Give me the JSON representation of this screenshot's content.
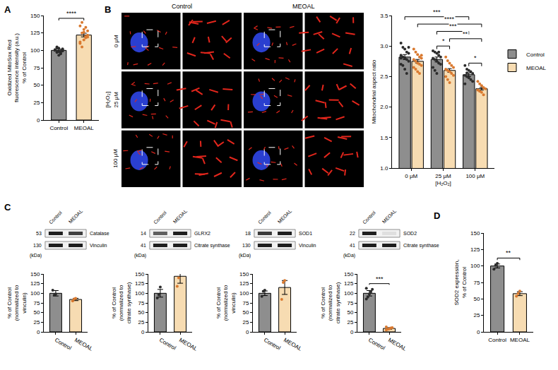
{
  "chart_data": [
    {
      "panel": "A",
      "type": "bar",
      "categories": [
        "Control",
        "MEOAL"
      ],
      "values": [
        100,
        122
      ],
      "errors": [
        1.5,
        2.6
      ],
      "points": [
        [
          100,
          97,
          103,
          95,
          99,
          101,
          104,
          98,
          96,
          102,
          100,
          105,
          93,
          99,
          101
        ],
        [
          110,
          125,
          130,
          118,
          122,
          135,
          140,
          115,
          120,
          128,
          112,
          105,
          126,
          133,
          119
        ]
      ],
      "colors": [
        "#8e8e8e",
        "#f7dcb2"
      ],
      "point_colors": [
        "#2b2b2b",
        "#d9792f"
      ],
      "ylabel": [
        "Oxidized MitoSox Red fluorescence intensity (a.u.)",
        "% of Control"
      ],
      "ylim": [
        0,
        150
      ],
      "yticks": [
        0,
        25,
        50,
        75,
        100,
        125,
        150
      ],
      "grid": false,
      "significance": [
        {
          "from": 0,
          "to": 1,
          "y": 146,
          "label": "****"
        }
      ]
    },
    {
      "panel": "B",
      "type": "bar",
      "categories": [
        "0 μM",
        "25 μM",
        "100 μM"
      ],
      "xlabel": "[H₂O₂]",
      "ylabel": [
        "Mitochondrial aspect ratio"
      ],
      "ylim": [
        1,
        3.5
      ],
      "yticks": [
        {
          "value": 1,
          "label": "1.0"
        },
        {
          "value": 1.5,
          "label": "1.5"
        },
        {
          "value": 2,
          "label": "2.0"
        },
        {
          "value": 2.5,
          "label": "2.5"
        },
        {
          "value": 3,
          "label": "3.0"
        },
        {
          "value": 3.5,
          "label": "3.5"
        }
      ],
      "grid": false,
      "legend": "right",
      "series": [
        {
          "name": "Control",
          "color": "#8e8e8e",
          "point_color": "#2b2b2b",
          "values": [
            2.82,
            2.78,
            2.53
          ],
          "errors": [
            0.04,
            0.04,
            0.03
          ],
          "points": [
            [
              3.05,
              2.98,
              2.95,
              2.9,
              2.88,
              2.85,
              2.82,
              2.8,
              2.78,
              2.75,
              2.7,
              2.68,
              2.62,
              2.55,
              2.98,
              2.8
            ],
            [
              2.92,
              2.9,
              2.88,
              2.85,
              2.82,
              2.8,
              2.78,
              2.75,
              2.72,
              2.7,
              2.65,
              2.6,
              2.55,
              2.9
            ],
            [
              2.68,
              2.62,
              2.6,
              2.58,
              2.55,
              2.52,
              2.5,
              2.48,
              2.45,
              2.42,
              2.38,
              2.56
            ]
          ]
        },
        {
          "name": "MEOAL",
          "color": "#f7dcb2",
          "point_color": "#d9792f",
          "values": [
            2.75,
            2.6,
            2.3
          ],
          "errors": [
            0.03,
            0.03,
            0.02
          ],
          "points": [
            [
              2.95,
              2.9,
              2.86,
              2.82,
              2.8,
              2.78,
              2.75,
              2.72,
              2.7,
              2.68,
              2.65,
              2.62,
              2.58,
              2.55,
              2.85
            ],
            [
              2.82,
              2.76,
              2.72,
              2.68,
              2.65,
              2.62,
              2.6,
              2.58,
              2.55,
              2.52,
              2.5,
              2.45,
              2.4
            ],
            [
              2.42,
              2.38,
              2.35,
              2.32,
              2.3,
              2.28,
              2.26,
              2.24,
              2.2
            ]
          ]
        }
      ],
      "significance": [
        {
          "from": [
            2,
            0
          ],
          "to": [
            2,
            1
          ],
          "y": 2.72,
          "label": "*"
        },
        {
          "from": [
            1,
            0
          ],
          "to": [
            1,
            1
          ],
          "y": 3.0,
          "label": "*"
        },
        {
          "from": [
            1,
            1
          ],
          "to": [
            2,
            1
          ],
          "y": 3.12,
          "label": "**"
        },
        {
          "from": [
            1,
            0
          ],
          "to": [
            2,
            0
          ],
          "y": 3.24,
          "label": "***"
        },
        {
          "from": [
            0,
            1
          ],
          "to": [
            2,
            1
          ],
          "y": 3.36,
          "label": "****"
        },
        {
          "from": [
            0,
            0
          ],
          "to": [
            2,
            0
          ],
          "y": 3.48,
          "label": "***"
        }
      ]
    },
    {
      "panel": "C",
      "type": "bar",
      "categories": [
        "Control",
        "MEOAL"
      ],
      "values": [
        100,
        84
      ],
      "errors": [
        7,
        3
      ],
      "points": [
        [
          108,
          95,
          98
        ],
        [
          80,
          85,
          87
        ]
      ],
      "colors": [
        "#8e8e8e",
        "#f7dcb2"
      ],
      "point_colors": [
        "#2b2b2b",
        "#d9792f"
      ],
      "ylabel": [
        "% of Control",
        "(normalized to vinculin)"
      ],
      "ylim": [
        0,
        150
      ],
      "yticks": [
        0,
        25,
        50,
        75,
        100,
        125,
        150
      ],
      "grid": false,
      "blot": {
        "lanes": [
          "Control",
          "MEOAL"
        ],
        "target": "Catalase",
        "target_kda": 53,
        "loading": "Vinculin",
        "loading_kda": 130,
        "kda_label": "(kDa)"
      }
    },
    {
      "type": "bar",
      "categories": [
        "Control",
        "MEOAL"
      ],
      "values": [
        100,
        144
      ],
      "errors": [
        10,
        18
      ],
      "points": [
        [
          88,
          96,
          116
        ],
        [
          118,
          140,
          172
        ]
      ],
      "colors": [
        "#8e8e8e",
        "#f7dcb2"
      ],
      "point_colors": [
        "#2b2b2b",
        "#d9792f"
      ],
      "ylabel": [
        "% of Control",
        "(normalized to citrate synthase)"
      ],
      "ylim": [
        0,
        150
      ],
      "yticks": [
        0,
        25,
        50,
        75,
        100,
        125,
        150
      ],
      "grid": false,
      "blot": {
        "lanes": [
          "Control",
          "MEOAL"
        ],
        "target": "GLRX2",
        "target_kda": 14,
        "loading": "Citrate synthase",
        "loading_kda": 41,
        "kda_label": "(kDa)"
      }
    },
    {
      "type": "bar",
      "categories": [
        "Control",
        "MEOAL"
      ],
      "values": [
        100,
        115
      ],
      "errors": [
        6,
        18
      ],
      "points": [
        [
          92,
          105,
          108
        ],
        [
          84,
          128,
          133
        ]
      ],
      "colors": [
        "#8e8e8e",
        "#f7dcb2"
      ],
      "point_colors": [
        "#2b2b2b",
        "#d9792f"
      ],
      "ylabel": [
        "% of Control",
        "(normalized to vinculin)"
      ],
      "ylim": [
        0,
        150
      ],
      "yticks": [
        0,
        25,
        50,
        75,
        100,
        125,
        150
      ],
      "grid": false,
      "blot": {
        "lanes": [
          "Control",
          "MEOAL"
        ],
        "target": "SOD1",
        "target_kda": 18,
        "loading": "Vinculin",
        "loading_kda": 130,
        "kda_label": "(kDa)"
      }
    },
    {
      "type": "bar",
      "categories": [
        "Control",
        "MEOAL"
      ],
      "values": [
        100,
        9
      ],
      "errors": [
        7,
        2
      ],
      "points": [
        [
          85,
          90,
          98,
          104,
          110,
          113
        ],
        [
          5,
          7,
          8,
          10,
          11,
          13
        ]
      ],
      "colors": [
        "#8e8e8e",
        "#f7dcb2"
      ],
      "point_colors": [
        "#2b2b2b",
        "#d9792f"
      ],
      "ylabel": [
        "% of Control",
        "(normalized to citrate synthase)"
      ],
      "ylim": [
        0,
        150
      ],
      "yticks": [
        0,
        25,
        50,
        75,
        100,
        125,
        150
      ],
      "grid": false,
      "significance": [
        {
          "from": 0,
          "to": 1,
          "y": 125,
          "label": "***"
        }
      ],
      "blot": {
        "lanes": [
          "Control",
          "MEOAL"
        ],
        "target": "SOD2",
        "target_kda": 22,
        "loading": "Citrate synthase",
        "loading_kda": 41,
        "kda_label": "(kDa)"
      }
    },
    {
      "panel": "D",
      "type": "bar",
      "categories": [
        "Control",
        "MEOAL"
      ],
      "values": [
        100,
        58
      ],
      "errors": [
        3,
        3
      ],
      "points": [
        [
          95,
          101,
          104
        ],
        [
          54,
          58,
          62
        ]
      ],
      "colors": [
        "#8e8e8e",
        "#f7dcb2"
      ],
      "point_colors": [
        "#2b2b2b",
        "#d9792f"
      ],
      "ylabel": [
        "SOD2 expression,",
        "% of Control"
      ],
      "ylim": [
        0,
        150
      ],
      "yticks": [
        0,
        25,
        50,
        75,
        100,
        125,
        150
      ],
      "grid": false,
      "significance": [
        {
          "from": 0,
          "to": 1,
          "y": 112,
          "label": "**"
        }
      ]
    }
  ],
  "images": {
    "columns": [
      "Control",
      "MEOAL"
    ],
    "rows": [
      "0 μM",
      "25 μM",
      "100 μM"
    ],
    "row_title": "[H₂O₂]"
  }
}
